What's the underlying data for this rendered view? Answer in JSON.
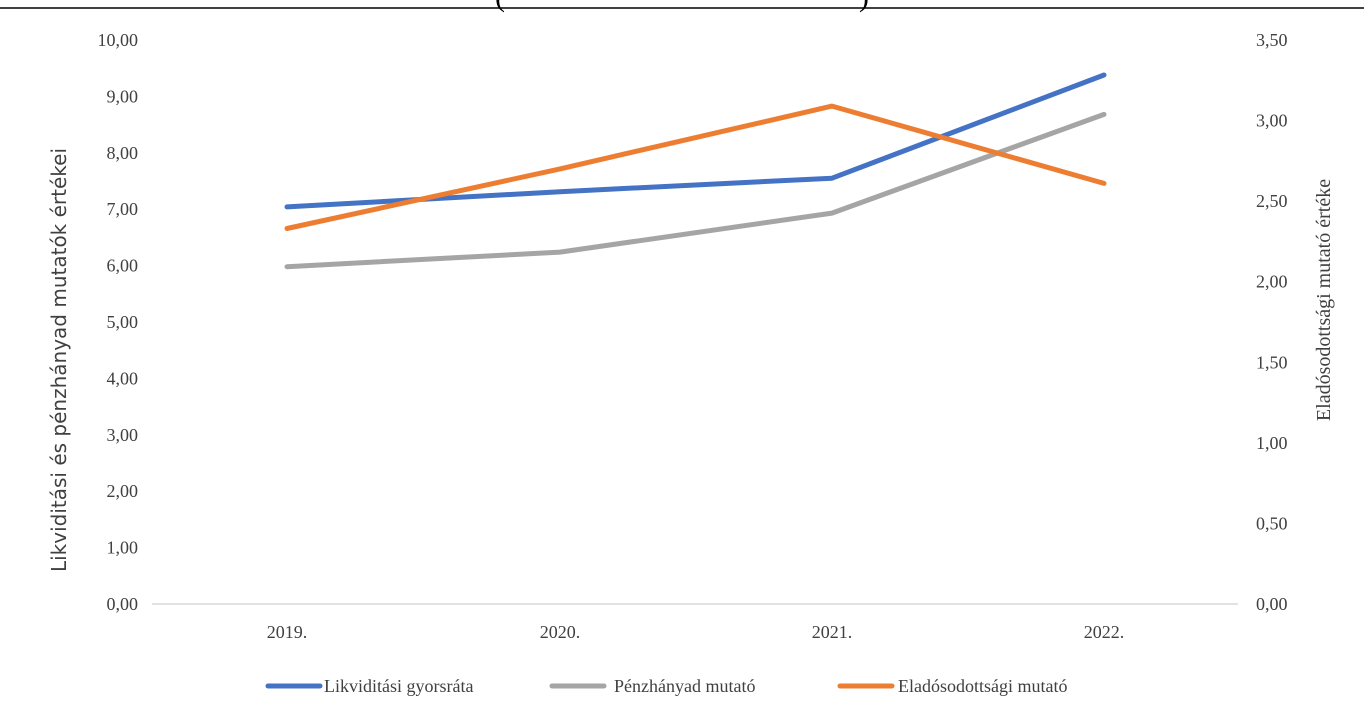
{
  "chart_data": {
    "type": "line",
    "title_fragment_left": "(",
    "title_fragment_right": ")",
    "categories": [
      "2019.",
      "2020.",
      "2021.",
      "2022."
    ],
    "y_left": {
      "label": "Likviditási és pénzhányad mutatók értékei",
      "ticks": [
        "0,00",
        "1,00",
        "2,00",
        "3,00",
        "4,00",
        "5,00",
        "6,00",
        "7,00",
        "8,00",
        "9,00",
        "10,00"
      ],
      "range": [
        0,
        10
      ]
    },
    "y_right": {
      "label": "Eladósodottsági mutató értéke",
      "ticks": [
        "0,00",
        "0,50",
        "1,00",
        "1,50",
        "2,00",
        "2,50",
        "3,00",
        "3,50"
      ],
      "range": [
        0,
        3.5
      ]
    },
    "series": [
      {
        "name": "Likviditási gyorsráta",
        "axis": "left",
        "color": "#4472C4",
        "values": [
          7.04,
          7.31,
          7.55,
          9.38
        ]
      },
      {
        "name": "Pénzhányad mutató",
        "axis": "left",
        "color": "#A5A5A5",
        "values": [
          5.98,
          6.24,
          6.93,
          8.68
        ]
      },
      {
        "name": "Eladósodottsági mutató",
        "axis": "right",
        "color": "#ED7D31",
        "values": [
          2.33,
          2.7,
          3.09,
          2.61
        ]
      }
    ],
    "legend_position": "bottom",
    "grid": false
  }
}
